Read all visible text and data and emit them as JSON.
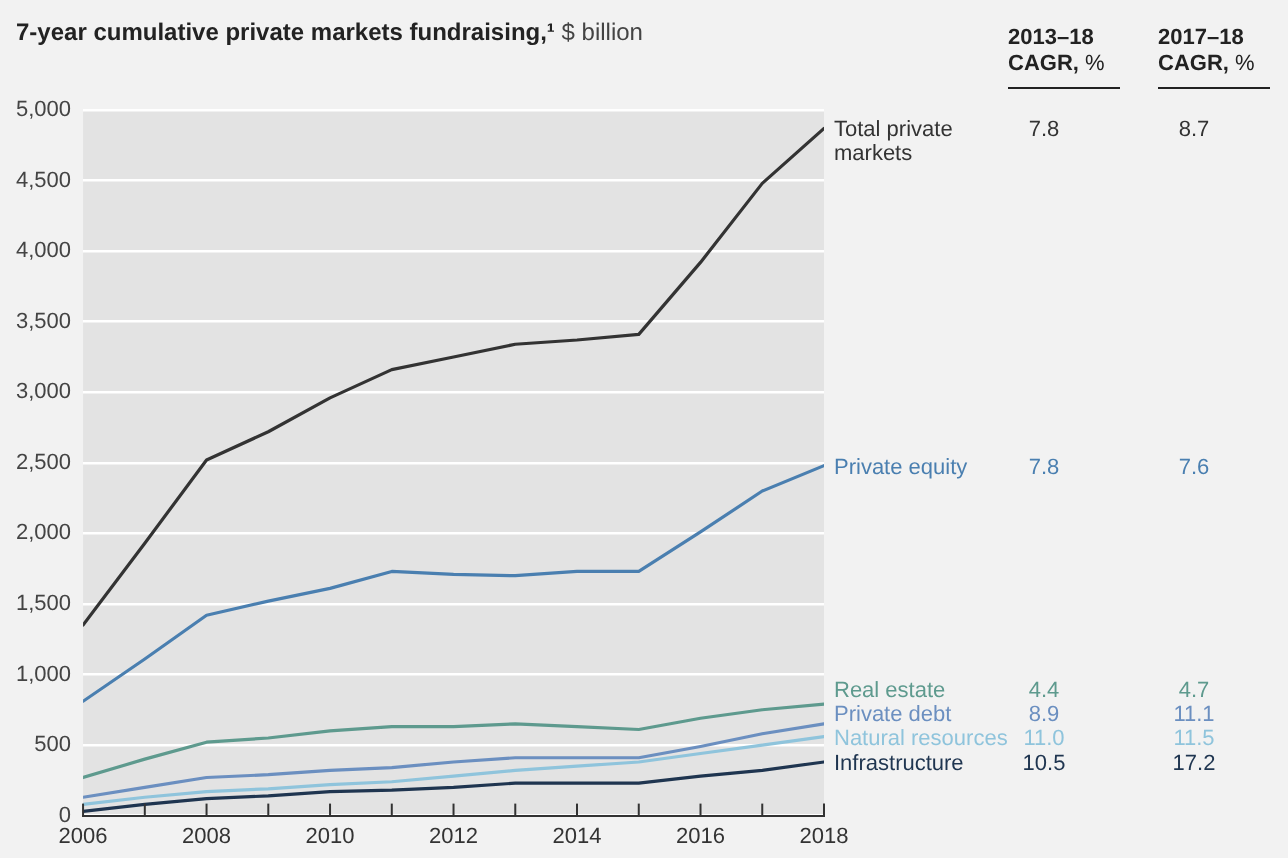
{
  "chart_data": {
    "type": "line",
    "title": "7-year cumulative private markets fundraising,¹",
    "ylabel": "$ billion",
    "x": [
      2006,
      2007,
      2008,
      2009,
      2010,
      2011,
      2012,
      2013,
      2014,
      2015,
      2016,
      2017,
      2018
    ],
    "xlim": [
      2006,
      2018
    ],
    "xticks": [
      2006,
      {
        "value": 2007,
        "label": null
      },
      2008,
      {
        "value": 2009,
        "label": null
      },
      2010,
      {
        "value": 2011,
        "label": null
      },
      2012,
      {
        "value": 2013,
        "label": null
      },
      2014,
      {
        "value": 2015,
        "label": null
      },
      2016,
      {
        "value": 2017,
        "label": null
      },
      2018
    ],
    "ylim": [
      0,
      5000
    ],
    "yticks": [
      0,
      500,
      {
        "value": 1000,
        "label": "1,000"
      },
      {
        "value": 1500,
        "label": "1,500"
      },
      {
        "value": 2000,
        "label": "2,000"
      },
      {
        "value": 2500,
        "label": "2,500"
      },
      {
        "value": 3000,
        "label": "3,000"
      },
      {
        "value": 3500,
        "label": "3,500"
      },
      {
        "value": 4000,
        "label": "4,000"
      },
      {
        "value": 4500,
        "label": "4,500"
      },
      {
        "value": 5000,
        "label": "5,000"
      }
    ],
    "grid": "y",
    "legend": false,
    "marker": "none",
    "line_style": "solid",
    "series": [
      {
        "name": "Total private markets",
        "color": "#333333",
        "values": [
          1350,
          1930,
          2520,
          2720,
          2960,
          3160,
          3250,
          3340,
          3370,
          3410,
          3920,
          4480,
          4870
        ]
      },
      {
        "name": "Private equity",
        "color": "#4a7fb0",
        "values": [
          810,
          1110,
          1420,
          1520,
          1610,
          1730,
          1710,
          1700,
          1730,
          1730,
          2010,
          2300,
          2480
        ]
      },
      {
        "name": "Real estate",
        "color": "#5e9a8e",
        "values": [
          270,
          400,
          520,
          550,
          600,
          630,
          630,
          650,
          630,
          610,
          690,
          750,
          790
        ]
      },
      {
        "name": "Private debt",
        "color": "#6b8fc0",
        "values": [
          130,
          200,
          270,
          290,
          320,
          340,
          380,
          410,
          410,
          410,
          490,
          580,
          650
        ]
      },
      {
        "name": "Natural resources",
        "color": "#8fc4dc",
        "values": [
          80,
          130,
          170,
          190,
          220,
          240,
          280,
          320,
          350,
          380,
          440,
          500,
          560
        ]
      },
      {
        "name": "Infrastructure",
        "color": "#1f3550",
        "values": [
          30,
          80,
          120,
          140,
          170,
          180,
          200,
          230,
          230,
          230,
          280,
          320,
          380
        ]
      }
    ],
    "annotations": [
      "2013–18\nCAGR, %",
      "2017–18\nCAGR, %",
      "7.8",
      "8.7",
      "7.8",
      "7.6",
      "4.4",
      "4.7",
      "8.9",
      "11.1",
      "11.0",
      "11.5",
      "10.5",
      "17.2"
    ]
  }
}
